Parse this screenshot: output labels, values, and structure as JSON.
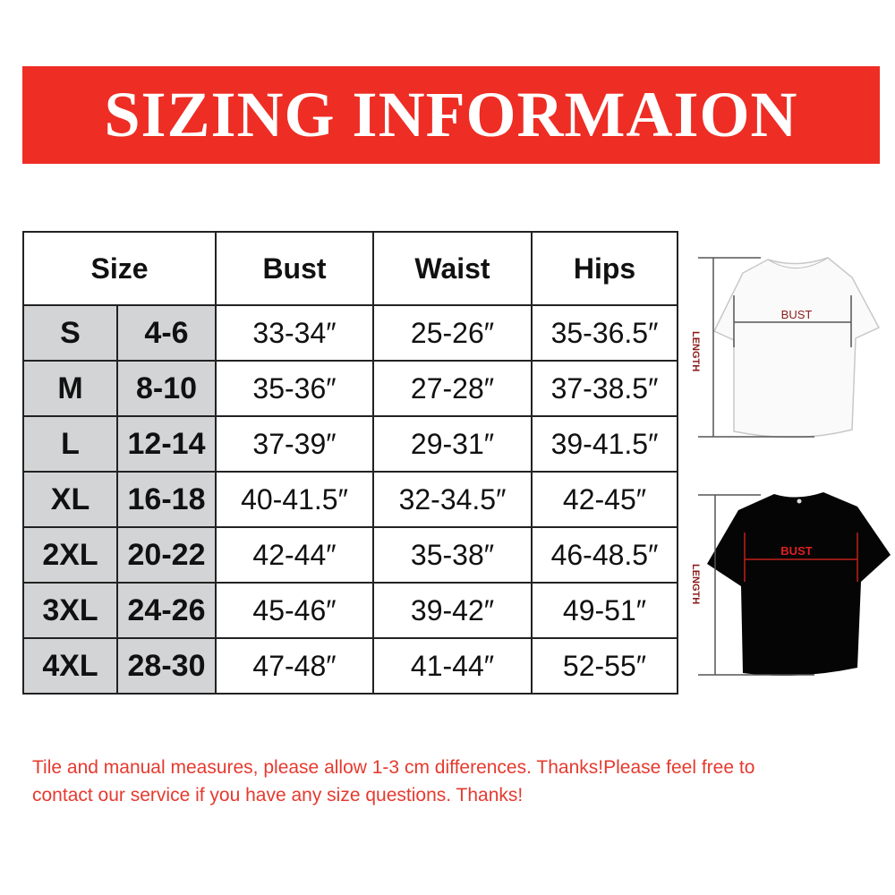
{
  "title": "SIZING INFORMAION",
  "table": {
    "headers": [
      "Size",
      "Bust",
      "Waist",
      "Hips"
    ],
    "rows": [
      {
        "size": "S",
        "us": "4-6",
        "bust": "33-34″",
        "waist": "25-26″",
        "hips": "35-36.5″"
      },
      {
        "size": "M",
        "us": "8-10",
        "bust": "35-36″",
        "waist": "27-28″",
        "hips": "37-38.5″"
      },
      {
        "size": "L",
        "us": "12-14",
        "bust": "37-39″",
        "waist": "29-31″",
        "hips": "39-41.5″"
      },
      {
        "size": "XL",
        "us": "16-18",
        "bust": "40-41.5″",
        "waist": "32-34.5″",
        "hips": "42-45″"
      },
      {
        "size": "2XL",
        "us": "20-22",
        "bust": "42-44″",
        "waist": "35-38″",
        "hips": "46-48.5″"
      },
      {
        "size": "3XL",
        "us": "24-26",
        "bust": "45-46″",
        "waist": "39-42″",
        "hips": "49-51″"
      },
      {
        "size": "4XL",
        "us": "28-30",
        "bust": "47-48″",
        "waist": "41-44″",
        "hips": "52-55″"
      }
    ]
  },
  "diagram": {
    "bust_label": "BUST",
    "length_label": "LENGTH"
  },
  "note": "Tile and manual measures, please allow 1-3 cm differences. Thanks!Please feel free to contact our service if you have any size questions. Thanks!",
  "colors": {
    "banner": "#ee2d24",
    "size_cell": "#d3d4d6",
    "note": "#e53a2f"
  }
}
